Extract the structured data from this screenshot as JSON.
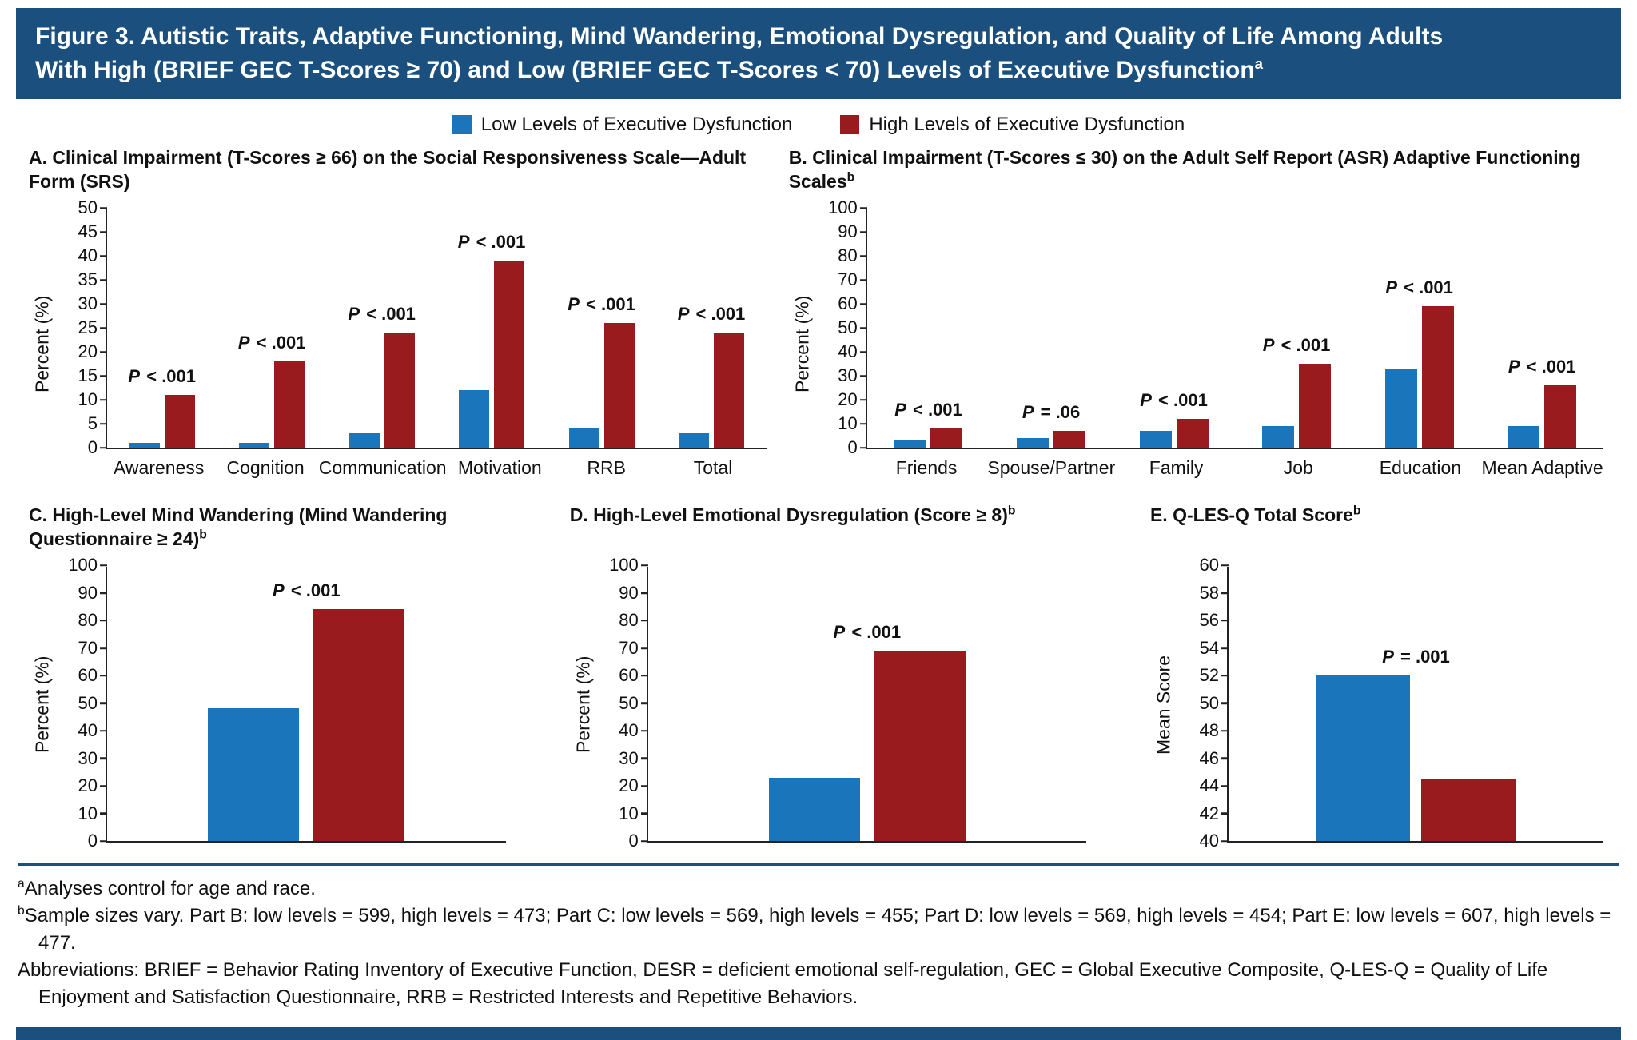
{
  "figure": {
    "title_line1": "Figure 3. Autistic Traits, Adaptive Functioning, Mind Wandering, Emotional Dysregulation, and Quality of Life Among Adults",
    "title_line2": "With High (BRIEF GEC T-Scores ≥ 70) and Low (BRIEF GEC T-Scores < 70) Levels of Executive Dysfunction",
    "title_superscript": "a"
  },
  "legend": {
    "items": [
      {
        "label": "Low Levels of Executive Dysfunction",
        "color": "#1B75BB"
      },
      {
        "label": "High Levels of Executive Dysfunction",
        "color": "#9A1B1E"
      }
    ]
  },
  "colors": {
    "header_bg": "#1B4F7D",
    "low": "#1B75BB",
    "high": "#9A1B1E",
    "axis": "#222222"
  },
  "chart_data": [
    {
      "id": "A",
      "type": "bar",
      "title": "A. Clinical Impairment (T-Scores ≥ 66) on the Social Responsiveness Scale—Adult Form (SRS)",
      "title_superscript": "",
      "ylabel": "Percent (%)",
      "ylim": [
        0,
        50
      ],
      "ytick_step": 5,
      "categories": [
        "Awareness",
        "Cognition",
        "Communication",
        "Motivation",
        "RRB",
        "Total"
      ],
      "series": [
        {
          "name": "Low Levels of Executive Dysfunction",
          "values": [
            1,
            1,
            3,
            12,
            4,
            3
          ]
        },
        {
          "name": "High Levels of Executive Dysfunction",
          "values": [
            11,
            18,
            24,
            39,
            26,
            24
          ]
        }
      ],
      "p_labels": [
        "P < .001",
        "P < .001",
        "P < .001",
        "P < .001",
        "P < .001",
        "P < .001"
      ]
    },
    {
      "id": "B",
      "type": "bar",
      "title": "B. Clinical Impairment (T-Scores ≤ 30) on the Adult Self Report (ASR) Adaptive Functioning Scales",
      "title_superscript": "b",
      "ylabel": "Percent (%)",
      "ylim": [
        0,
        100
      ],
      "ytick_step": 10,
      "categories": [
        "Friends",
        "Spouse/Partner",
        "Family",
        "Job",
        "Education",
        "Mean Adaptive"
      ],
      "series": [
        {
          "name": "Low Levels of Executive Dysfunction",
          "values": [
            3,
            4,
            7,
            9,
            33,
            9
          ]
        },
        {
          "name": "High Levels of Executive Dysfunction",
          "values": [
            8,
            7,
            12,
            35,
            59,
            26
          ]
        }
      ],
      "p_labels": [
        "P < .001",
        "P = .06",
        "P < .001",
        "P < .001",
        "P < .001",
        "P < .001"
      ]
    },
    {
      "id": "C",
      "type": "bar",
      "title": "C. High-Level Mind Wandering (Mind Wandering Questionnaire ≥ 24)",
      "title_superscript": "b",
      "ylabel": "Percent (%)",
      "ylim": [
        0,
        100
      ],
      "ytick_step": 10,
      "categories": [
        ""
      ],
      "series": [
        {
          "name": "Low Levels of Executive Dysfunction",
          "values": [
            48
          ]
        },
        {
          "name": "High Levels of Executive Dysfunction",
          "values": [
            84
          ]
        }
      ],
      "p_labels": [
        "P < .001"
      ]
    },
    {
      "id": "D",
      "type": "bar",
      "title": "D. High-Level Emotional Dysregulation (Score ≥ 8)",
      "title_superscript": "b",
      "ylabel": "Percent (%)",
      "ylim": [
        0,
        100
      ],
      "ytick_step": 10,
      "categories": [
        ""
      ],
      "series": [
        {
          "name": "Low Levels of Executive Dysfunction",
          "values": [
            23
          ]
        },
        {
          "name": "High Levels of Executive Dysfunction",
          "values": [
            69
          ]
        }
      ],
      "p_labels": [
        "P < .001"
      ]
    },
    {
      "id": "E",
      "type": "bar",
      "title": "E. Q-LES-Q Total Score",
      "title_superscript": "b",
      "ylabel": "Mean Score",
      "ylim": [
        40,
        60
      ],
      "ytick_step": 2,
      "categories": [
        ""
      ],
      "series": [
        {
          "name": "Low Levels of Executive Dysfunction",
          "values": [
            52
          ]
        },
        {
          "name": "High Levels of Executive Dysfunction",
          "values": [
            44.5
          ]
        }
      ],
      "p_labels": [
        "P = .001"
      ]
    }
  ],
  "footnotes": {
    "a_sup": "a",
    "a_text": "Analyses control for age and race.",
    "b_sup": "b",
    "b_text": "Sample sizes vary. Part B: low levels = 599, high levels = 473; Part C: low levels = 569, high levels = 455; Part D: low levels = 569, high levels = 454; Part E: low levels = 607, high levels = 477.",
    "abbrev_text": "Abbreviations: BRIEF = Behavior Rating Inventory of Executive Function, DESR = deficient emotional self-regulation, GEC = Global Executive Composite, Q-LES-Q = Quality of Life Enjoyment and Satisfaction Questionnaire, RRB = Restricted Interests and Repetitive Behaviors."
  }
}
